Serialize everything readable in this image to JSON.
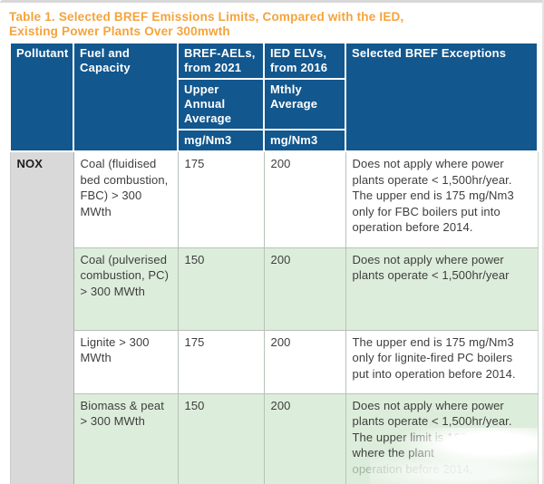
{
  "title": {
    "line1": "Table 1. Selected BREF Emissions Limits, Compared with the IED,",
    "line2": "Existing Power Plants Over 300mwth"
  },
  "table": {
    "header": {
      "pollutant": "Pollutant",
      "fuel": "Fuel and Capacity",
      "bref_top": "BREF-AELs, from 2021",
      "bref_mid": "Upper Annual Average",
      "bref_unit": "mg/Nm3",
      "ied_top": "IED ELVs, from 2016",
      "ied_mid": "Mthly Average",
      "ied_unit": "mg/Nm3",
      "exceptions": "Selected BREF Exceptions"
    },
    "pollutant_group": "NOX",
    "rows": [
      {
        "fuel": "Coal (fluidised bed combustion, FBC) > 300 MWth",
        "bref": "175",
        "ied": "200",
        "exception": "Does not apply where power plants operate < 1,500hr/year. The upper end is 175 mg/Nm3 only for FBC boilers put into operation before 2014."
      },
      {
        "fuel": "Coal (pulverised combustion, PC) > 300 MWth",
        "bref": "150",
        "ied": "200",
        "exception": "Does not apply where power plants operate < 1,500hr/year"
      },
      {
        "fuel": "Lignite > 300 MWth",
        "bref": "175",
        "ied": "200",
        "exception": "The upper end is 175 mg/Nm3 only for lignite-fired PC boilers put into operation before 2014."
      },
      {
        "fuel": "Biomass & peat > 300 MWth",
        "bref": "150",
        "ied": "200",
        "exception": "Does not apply where power plants operate < 1,500hr/year. The upper limit is 160mg/Nm3 where the plant",
        "exception_faded": "operation before 2014."
      }
    ]
  },
  "colors": {
    "header_bg": "#12578e",
    "title_orange": "#f5a33a",
    "alt_row_green": "#ddeddb",
    "pollutant_gray": "#d9d9d9",
    "bottom_border": "#8a948a"
  }
}
